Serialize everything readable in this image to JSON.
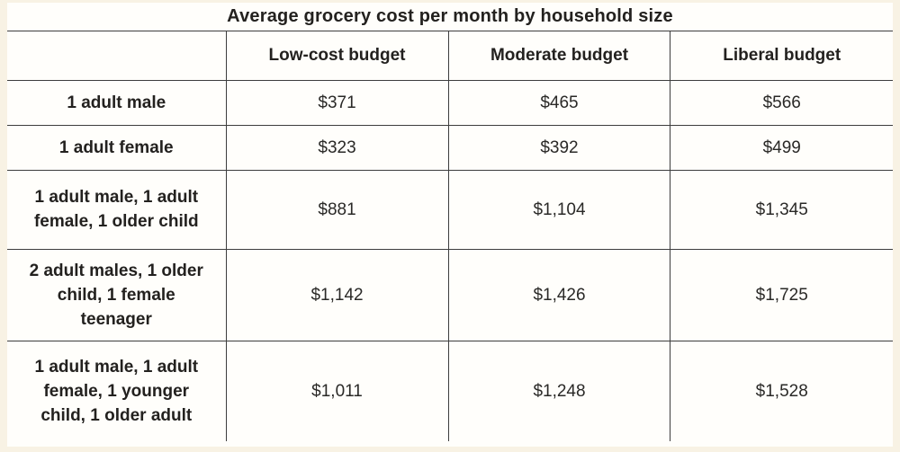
{
  "colors": {
    "page_background": "#f8f2e4",
    "cell_background": "#fffefb",
    "border": "#3d3d3d",
    "text": "#23211f"
  },
  "title": "Average grocery cost per month by household size",
  "table": {
    "columns": [
      "",
      "Low-cost budget",
      "Moderate budget",
      "Liberal budget"
    ],
    "rows": [
      {
        "label": "1 adult male",
        "values": [
          "$371",
          "$465",
          "$566"
        ]
      },
      {
        "label": "1 adult female",
        "values": [
          "$323",
          "$392",
          "$499"
        ]
      },
      {
        "label": "1 adult male, 1 adult female, 1 older child",
        "values": [
          "$881",
          "$1,104",
          "$1,345"
        ]
      },
      {
        "label": "2 adult males, 1 older child, 1 female teenager",
        "values": [
          "$1,142",
          "$1,426",
          "$1,725"
        ]
      },
      {
        "label": "1 adult male, 1 adult female, 1 younger child, 1 older adult",
        "values": [
          "$1,011",
          "$1,248",
          "$1,528"
        ]
      }
    ]
  },
  "chart_data": {
    "type": "table",
    "title": "Average grocery cost per month by household size",
    "categories": [
      "1 adult male",
      "1 adult female",
      "1 adult male, 1 adult female, 1 older child",
      "2 adult males, 1 older child, 1 female teenager",
      "1 adult male, 1 adult female, 1 younger child, 1 older adult"
    ],
    "series": [
      {
        "name": "Low-cost budget",
        "values": [
          371,
          323,
          881,
          1142,
          1011
        ]
      },
      {
        "name": "Moderate budget",
        "values": [
          465,
          392,
          1104,
          1426,
          1248
        ]
      },
      {
        "name": "Liberal budget",
        "values": [
          566,
          499,
          1345,
          1725,
          1528
        ]
      }
    ],
    "value_unit": "USD per month"
  }
}
